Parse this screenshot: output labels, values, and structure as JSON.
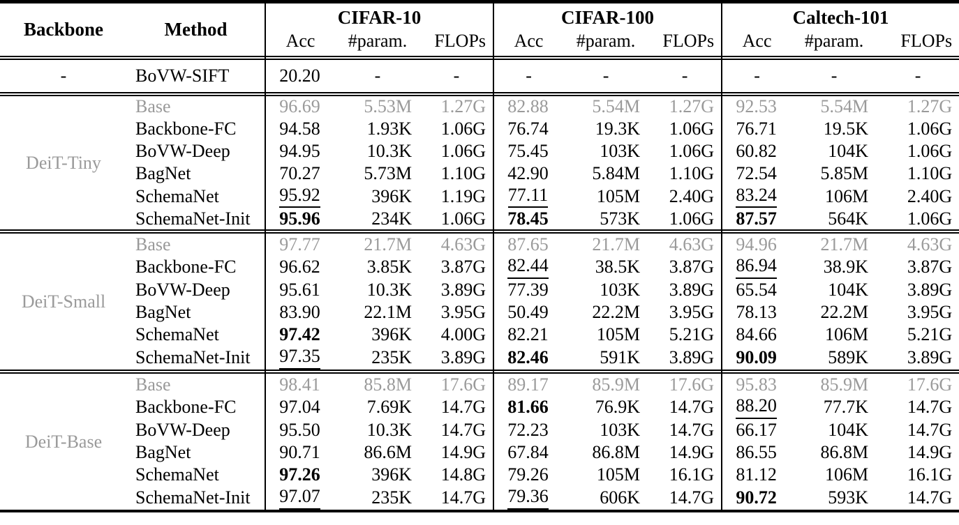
{
  "colors": {
    "background": "#ffffff",
    "text": "#000000",
    "muted_row_text": "#9a9a9a",
    "rule": "#000000"
  },
  "table": {
    "backbone_header": "Backbone",
    "method_header": "Method",
    "groups": [
      {
        "label": "CIFAR-10",
        "cols": [
          "Acc",
          "#param.",
          "FLOPs"
        ]
      },
      {
        "label": "CIFAR-100",
        "cols": [
          "Acc",
          "#param.",
          "FLOPs"
        ]
      },
      {
        "label": "Caltech-101",
        "cols": [
          "Acc",
          "#param.",
          "FLOPs"
        ]
      }
    ],
    "sections": [
      {
        "backbone": "-",
        "rows": [
          {
            "method": "BoVW-SIFT",
            "cells": [
              "20.20",
              "-",
              "-",
              "-",
              "-",
              "-",
              "-",
              "-",
              "-"
            ]
          }
        ]
      },
      {
        "backbone": "DeiT-Tiny",
        "rows": [
          {
            "method": "Base",
            "muted": true,
            "cells": [
              "96.69",
              "5.53M",
              "1.27G",
              "82.88",
              "5.54M",
              "1.27G",
              "92.53",
              "5.54M",
              "1.27G"
            ]
          },
          {
            "method": "Backbone-FC",
            "cells": [
              "94.58",
              "1.93K",
              "1.06G",
              "76.74",
              "19.3K",
              "1.06G",
              "76.71",
              "19.5K",
              "1.06G"
            ]
          },
          {
            "method": "BoVW-Deep",
            "cells": [
              "94.95",
              "10.3K",
              "1.06G",
              "75.45",
              "103K",
              "1.06G",
              "60.82",
              "104K",
              "1.06G"
            ]
          },
          {
            "method": "BagNet",
            "cells": [
              "70.27",
              "5.73M",
              "1.10G",
              "42.90",
              "5.84M",
              "1.10G",
              "72.54",
              "5.85M",
              "1.10G"
            ]
          },
          {
            "method": "SchemaNet",
            "cells": [
              {
                "v": "95.92",
                "s": "u"
              },
              "396K",
              "1.19G",
              {
                "v": "77.11",
                "s": "u"
              },
              "105M",
              "2.40G",
              {
                "v": "83.24",
                "s": "u"
              },
              "106M",
              "2.40G"
            ]
          },
          {
            "method": "SchemaNet-Init",
            "cells": [
              {
                "v": "95.96",
                "s": "b"
              },
              "234K",
              "1.06G",
              {
                "v": "78.45",
                "s": "b"
              },
              "573K",
              "1.06G",
              {
                "v": "87.57",
                "s": "b"
              },
              "564K",
              "1.06G"
            ]
          }
        ]
      },
      {
        "backbone": "DeiT-Small",
        "rows": [
          {
            "method": "Base",
            "muted": true,
            "cells": [
              "97.77",
              "21.7M",
              "4.63G",
              "87.65",
              "21.7M",
              "4.63G",
              "94.96",
              "21.7M",
              "4.63G"
            ]
          },
          {
            "method": "Backbone-FC",
            "cells": [
              "96.62",
              "3.85K",
              "3.87G",
              {
                "v": "82.44",
                "s": "u"
              },
              "38.5K",
              "3.87G",
              {
                "v": "86.94",
                "s": "u"
              },
              "38.9K",
              "3.87G"
            ]
          },
          {
            "method": "BoVW-Deep",
            "cells": [
              "95.61",
              "10.3K",
              "3.89G",
              "77.39",
              "103K",
              "3.89G",
              "65.54",
              "104K",
              "3.89G"
            ]
          },
          {
            "method": "BagNet",
            "cells": [
              "83.90",
              "22.1M",
              "3.95G",
              "50.49",
              "22.2M",
              "3.95G",
              "78.13",
              "22.2M",
              "3.95G"
            ]
          },
          {
            "method": "SchemaNet",
            "cells": [
              {
                "v": "97.42",
                "s": "b"
              },
              "396K",
              "4.00G",
              "82.21",
              "105M",
              "5.21G",
              "84.66",
              "106M",
              "5.21G"
            ]
          },
          {
            "method": "SchemaNet-Init",
            "cells": [
              {
                "v": "97.35",
                "s": "u"
              },
              "235K",
              "3.89G",
              {
                "v": "82.46",
                "s": "b"
              },
              "591K",
              "3.89G",
              {
                "v": "90.09",
                "s": "b"
              },
              "589K",
              "3.89G"
            ]
          }
        ]
      },
      {
        "backbone": "DeiT-Base",
        "rows": [
          {
            "method": "Base",
            "muted": true,
            "cells": [
              "98.41",
              "85.8M",
              "17.6G",
              "89.17",
              "85.9M",
              "17.6G",
              "95.83",
              "85.9M",
              "17.6G"
            ]
          },
          {
            "method": "Backbone-FC",
            "cells": [
              "97.04",
              "7.69K",
              "14.7G",
              {
                "v": "81.66",
                "s": "b"
              },
              "76.9K",
              "14.7G",
              {
                "v": "88.20",
                "s": "u"
              },
              "77.7K",
              "14.7G"
            ]
          },
          {
            "method": "BoVW-Deep",
            "cells": [
              "95.50",
              "10.3K",
              "14.7G",
              "72.23",
              "103K",
              "14.7G",
              "66.17",
              "104K",
              "14.7G"
            ]
          },
          {
            "method": "BagNet",
            "cells": [
              "90.71",
              "86.6M",
              "14.9G",
              "67.84",
              "86.8M",
              "14.9G",
              "86.55",
              "86.8M",
              "14.9G"
            ]
          },
          {
            "method": "SchemaNet",
            "cells": [
              {
                "v": "97.26",
                "s": "b"
              },
              "396K",
              "14.8G",
              "79.26",
              "105M",
              "16.1G",
              "81.12",
              "106M",
              "16.1G"
            ]
          },
          {
            "method": "SchemaNet-Init",
            "cells": [
              {
                "v": "97.07",
                "s": "u"
              },
              "235K",
              "14.7G",
              {
                "v": "79.36",
                "s": "u"
              },
              "606K",
              "14.7G",
              {
                "v": "90.72",
                "s": "b"
              },
              "593K",
              "14.7G"
            ]
          }
        ]
      }
    ]
  }
}
